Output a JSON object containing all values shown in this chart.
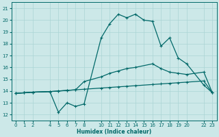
{
  "xlabel": "Humidex (Indice chaleur)",
  "bg_color": "#cce8e8",
  "grid_color": "#aad4d4",
  "line_color": "#006868",
  "ylim": [
    11.5,
    21.5
  ],
  "xlim": [
    -0.5,
    23.5
  ],
  "yticks": [
    12,
    13,
    14,
    15,
    16,
    17,
    18,
    19,
    20,
    21
  ],
  "xticks": [
    0,
    1,
    2,
    4,
    5,
    6,
    7,
    8,
    10,
    11,
    12,
    13,
    14,
    15,
    16,
    17,
    18,
    19,
    20,
    22,
    23
  ],
  "line_flat_x": [
    0,
    1,
    2,
    4,
    5,
    6,
    7,
    8,
    10,
    11,
    12,
    13,
    14,
    16,
    17,
    18,
    19,
    20,
    22,
    23
  ],
  "line_flat_y": [
    13.8,
    13.85,
    13.9,
    13.95,
    14.0,
    14.05,
    14.1,
    14.15,
    14.25,
    14.3,
    14.35,
    14.4,
    14.45,
    14.55,
    14.6,
    14.65,
    14.7,
    14.75,
    14.85,
    13.85
  ],
  "line_mid_x": [
    0,
    1,
    2,
    4,
    5,
    6,
    7,
    8,
    10,
    11,
    12,
    13,
    14,
    16,
    17,
    18,
    19,
    20,
    22,
    23
  ],
  "line_mid_y": [
    13.8,
    13.85,
    13.9,
    13.95,
    14.0,
    14.05,
    14.1,
    14.8,
    15.2,
    15.5,
    15.7,
    15.9,
    16.0,
    16.3,
    15.9,
    15.6,
    15.5,
    15.4,
    15.6,
    13.85
  ],
  "line_peak_x": [
    0,
    1,
    2,
    4,
    5,
    6,
    7,
    8,
    10,
    11,
    12,
    13,
    14,
    15,
    16,
    17,
    18,
    19,
    20,
    22,
    23
  ],
  "line_peak_y": [
    13.8,
    13.85,
    13.9,
    13.95,
    12.2,
    13.0,
    12.7,
    12.9,
    18.5,
    19.7,
    20.5,
    20.2,
    20.5,
    20.0,
    19.9,
    17.8,
    18.5,
    16.8,
    16.3,
    14.5,
    13.85
  ]
}
